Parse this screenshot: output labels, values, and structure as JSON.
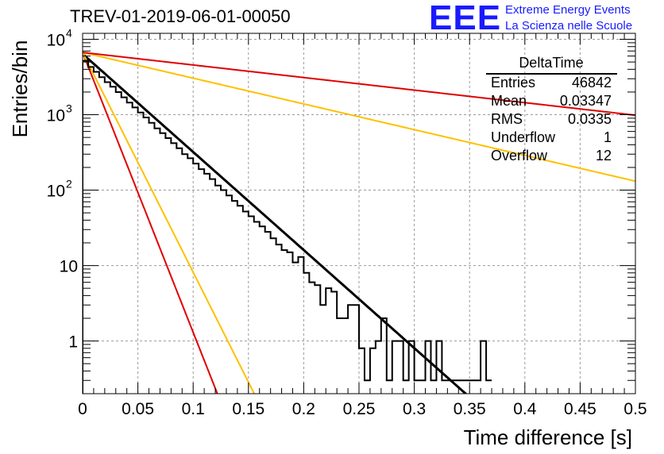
{
  "header": {
    "title": "TREV-01-2019-06-01-00050",
    "logo_text": "EEE",
    "logo_line1": "Extreme Energy Events",
    "logo_line2": "La Scienza nelle Scuole"
  },
  "stats_box": {
    "name": "DeltaTime",
    "rows": [
      {
        "label": "Entries",
        "value": "46842"
      },
      {
        "label": "Mean",
        "value": "0.03347"
      },
      {
        "label": "RMS",
        "value": "0.0335"
      },
      {
        "label": "Underflow",
        "value": "1"
      },
      {
        "label": "Overflow",
        "value": "12"
      }
    ]
  },
  "colors": {
    "histogram": "#000000",
    "fit": "#000000",
    "red": "#e00000",
    "orange": "#ffc000",
    "grid": "#9a9a9a",
    "logo": "#1a1aff"
  },
  "chart_data": {
    "type": "line",
    "xlabel": "Time difference [s]",
    "ylabel": "Entries/bin",
    "xlim": [
      0,
      0.5
    ],
    "ylim": [
      0.2,
      12000
    ],
    "yscale": "log",
    "grid": true,
    "xticks": [
      "0",
      "0.05",
      "0.1",
      "0.15",
      "0.2",
      "0.25",
      "0.3",
      "0.35",
      "0.4",
      "0.45",
      "0.5"
    ],
    "yticks": [
      {
        "value": 10000,
        "label": "10",
        "exp": "4"
      },
      {
        "value": 1000,
        "label": "10",
        "exp": "3"
      },
      {
        "value": 100,
        "label": "10",
        "exp": "2"
      },
      {
        "value": 10,
        "label": "10",
        "exp": ""
      },
      {
        "value": 1,
        "label": "1",
        "exp": ""
      }
    ],
    "histogram": {
      "bin_width": 0.005,
      "x_start": 0,
      "counts": [
        5200,
        4300,
        3700,
        3150,
        2700,
        2350,
        2000,
        1700,
        1450,
        1250,
        1070,
        920,
        780,
        660,
        570,
        490,
        420,
        360,
        300,
        265,
        225,
        190,
        165,
        140,
        115,
        100,
        85,
        72,
        62,
        52,
        45,
        38,
        33,
        28,
        23,
        19,
        16,
        15,
        11,
        13,
        8,
        6,
        5.5,
        3,
        5,
        4.5,
        2,
        2,
        3,
        3,
        0.8,
        0.3,
        0.8,
        1,
        2,
        0.3,
        1,
        1,
        0.3,
        1,
        0.3,
        0.3,
        1,
        0.3,
        1,
        0.3,
        0.3,
        0.3,
        0.3,
        0.3,
        0.3,
        0.3,
        1,
        0.3
      ]
    },
    "series": [
      {
        "kind": "fit",
        "style": "black",
        "A": 6400,
        "tau": 0.0334
      },
      {
        "kind": "exp",
        "style": "red",
        "A": 6700,
        "tau": 0.0117
      },
      {
        "kind": "exp",
        "style": "orange",
        "A": 6700,
        "tau": 0.0149
      },
      {
        "kind": "exp",
        "style": "orange",
        "A": 6700,
        "tau": 0.1272
      },
      {
        "kind": "exp",
        "style": "red",
        "A": 6700,
        "tau": 0.2608
      }
    ]
  }
}
